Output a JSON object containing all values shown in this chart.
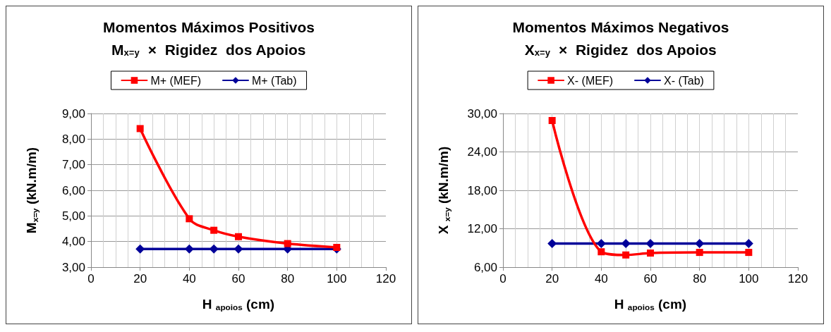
{
  "chart_data": [
    {
      "type": "line",
      "title": "Momentos Máximos Positivos",
      "subtitle": "M$_{x=y}$  ×  Rigidez  dos Apoios",
      "xlabel": "H $_{apoios}$ (cm)",
      "ylabel": "M$_{x=y}$ (kN.m/m)",
      "x": [
        20,
        40,
        50,
        60,
        80,
        100
      ],
      "series": [
        {
          "name": "M+ (MEF)",
          "color": "#ff0000",
          "marker": "square",
          "values": [
            8.41,
            4.89,
            4.44,
            4.19,
            3.92,
            3.77
          ]
        },
        {
          "name": "M+ (Tab)",
          "color": "#000099",
          "marker": "diamond",
          "values": [
            3.71,
            3.71,
            3.71,
            3.71,
            3.71,
            3.71
          ]
        }
      ],
      "xlim": [
        0,
        120
      ],
      "xticks": [
        0,
        {
          "value": 5,
          "label": null
        },
        {
          "value": 10,
          "label": null
        },
        {
          "value": 15,
          "label": null
        },
        20,
        {
          "value": 25,
          "label": null
        },
        {
          "value": 30,
          "label": null
        },
        {
          "value": 35,
          "label": null
        },
        40,
        {
          "value": 45,
          "label": null
        },
        {
          "value": 50,
          "label": null
        },
        {
          "value": 55,
          "label": null
        },
        60,
        {
          "value": 65,
          "label": null
        },
        {
          "value": 70,
          "label": null
        },
        {
          "value": 75,
          "label": null
        },
        80,
        {
          "value": 85,
          "label": null
        },
        {
          "value": 90,
          "label": null
        },
        {
          "value": 95,
          "label": null
        },
        100,
        {
          "value": 105,
          "label": null
        },
        {
          "value": 110,
          "label": null
        },
        {
          "value": 115,
          "label": null
        },
        120
      ],
      "ylim": [
        3,
        9
      ],
      "yticks": [
        {
          "value": 3,
          "label": "3,00"
        },
        {
          "value": 4,
          "label": "4,00"
        },
        {
          "value": 5,
          "label": "5,00"
        },
        {
          "value": 6,
          "label": "6,00"
        },
        {
          "value": 7,
          "label": "7,00"
        },
        {
          "value": 8,
          "label": "8,00"
        },
        {
          "value": 9,
          "label": "9,00"
        }
      ],
      "grid": true,
      "legend": "top",
      "line_style": "solid"
    },
    {
      "type": "line",
      "title": "Momentos Máximos Negativos",
      "subtitle": "X$_{x=y}$  ×  Rigidez  dos Apoios",
      "xlabel": "H $_{apoios}$ (cm)",
      "ylabel": "X $_{x=y}$ (kN.m/m)",
      "x": [
        20,
        40,
        50,
        60,
        80,
        100
      ],
      "series": [
        {
          "name": "X- (MEF)",
          "color": "#ff0000",
          "marker": "square",
          "values": [
            28.9,
            8.4,
            7.9,
            8.2,
            8.3,
            8.3
          ]
        },
        {
          "name": "X- (Tab)",
          "color": "#000099",
          "marker": "diamond",
          "values": [
            9.7,
            9.7,
            9.7,
            9.7,
            9.7,
            9.7
          ]
        }
      ],
      "xlim": [
        0,
        120
      ],
      "xticks": [
        0,
        {
          "value": 5,
          "label": null
        },
        {
          "value": 10,
          "label": null
        },
        {
          "value": 15,
          "label": null
        },
        20,
        {
          "value": 25,
          "label": null
        },
        {
          "value": 30,
          "label": null
        },
        {
          "value": 35,
          "label": null
        },
        40,
        {
          "value": 45,
          "label": null
        },
        {
          "value": 50,
          "label": null
        },
        {
          "value": 55,
          "label": null
        },
        60,
        {
          "value": 65,
          "label": null
        },
        {
          "value": 70,
          "label": null
        },
        {
          "value": 75,
          "label": null
        },
        80,
        {
          "value": 85,
          "label": null
        },
        {
          "value": 90,
          "label": null
        },
        {
          "value": 95,
          "label": null
        },
        100,
        {
          "value": 105,
          "label": null
        },
        {
          "value": 110,
          "label": null
        },
        {
          "value": 115,
          "label": null
        },
        120
      ],
      "ylim": [
        6,
        30
      ],
      "yticks": [
        {
          "value": 6,
          "label": "6,00"
        },
        {
          "value": 12,
          "label": "12,00"
        },
        {
          "value": 18,
          "label": "18,00"
        },
        {
          "value": 24,
          "label": "24,00"
        },
        {
          "value": 30,
          "label": "30,00"
        }
      ],
      "grid": true,
      "legend": "top",
      "line_style": "solid"
    }
  ]
}
